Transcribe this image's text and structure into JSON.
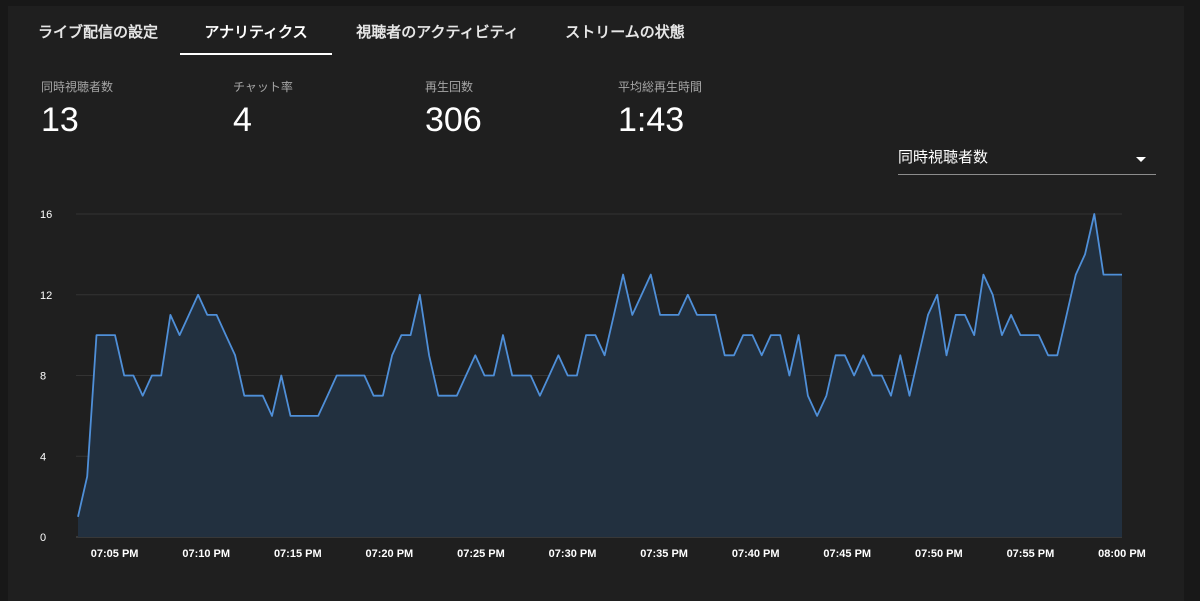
{
  "tabs": [
    {
      "label": "ライブ配信の設定",
      "active": false
    },
    {
      "label": "アナリティクス",
      "active": true
    },
    {
      "label": "視聴者のアクティビティ",
      "active": false
    },
    {
      "label": "ストリームの状態",
      "active": false
    }
  ],
  "stats": [
    {
      "label": "同時視聴者数",
      "value": "13"
    },
    {
      "label": "チャット率",
      "value": "4"
    },
    {
      "label": "再生回数",
      "value": "306"
    },
    {
      "label": "平均総再生時間",
      "value": "1:43"
    }
  ],
  "metric_select": {
    "selected": "同時視聴者数"
  },
  "icons": {
    "dropdown": "dropdown-arrow-icon"
  },
  "colors": {
    "line": "#4f8fd8",
    "fill": "#22303f",
    "grid": "#333333",
    "background": "#1f1f1f"
  },
  "chart_data": {
    "type": "area",
    "title": "",
    "xlabel": "",
    "ylabel": "",
    "ylim": [
      0,
      16
    ],
    "xlim": [
      "07:03 PM",
      "08:00 PM"
    ],
    "yticks": [
      0,
      4,
      8,
      12,
      16
    ],
    "xticks": [
      "07:05 PM",
      "07:10 PM",
      "07:15 PM",
      "07:20 PM",
      "07:25 PM",
      "07:30 PM",
      "07:35 PM",
      "07:40 PM",
      "07:45 PM",
      "07:50 PM",
      "07:55 PM",
      "08:00 PM"
    ],
    "grid": true,
    "legend": "none",
    "series": [
      {
        "values": [
          1,
          3,
          10,
          10,
          10,
          8,
          8,
          7,
          8,
          8,
          11,
          10,
          11,
          12,
          11,
          11,
          10,
          9,
          7,
          7,
          7,
          6,
          8,
          6,
          6,
          6,
          6,
          7,
          8,
          8,
          8,
          8,
          7,
          7,
          9,
          10,
          10,
          12,
          9,
          7,
          7,
          7,
          8,
          9,
          8,
          8,
          10,
          8,
          8,
          8,
          7,
          8,
          9,
          8,
          8,
          10,
          10,
          9,
          11,
          13,
          11,
          12,
          13,
          11,
          11,
          11,
          12,
          11,
          11,
          11,
          9,
          9,
          10,
          10,
          9,
          10,
          10,
          8,
          10,
          7,
          6,
          7,
          9,
          9,
          8,
          9,
          8,
          8,
          7,
          9,
          7,
          9,
          11,
          12,
          9,
          11,
          11,
          10,
          13,
          12,
          10,
          11,
          10,
          10,
          10,
          9,
          9,
          11,
          13,
          14,
          16,
          13,
          13,
          13
        ]
      }
    ]
  }
}
